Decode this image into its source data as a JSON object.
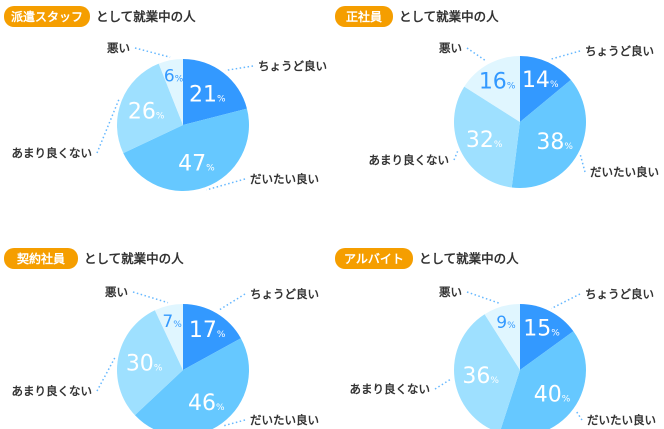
{
  "title_suffix": "として就業中の人",
  "chart_data": [
    {
      "type": "pie",
      "group": "派遣スタッフ",
      "title": "派遣スタッフ として就業中の人",
      "categories": [
        "ちょうど良い",
        "だいたい良い",
        "あまり良くない",
        "悪い"
      ],
      "values": [
        21,
        47,
        26,
        6
      ]
    },
    {
      "type": "pie",
      "group": "正社員",
      "title": "正社員 として就業中の人",
      "categories": [
        "ちょうど良い",
        "だいたい良い",
        "あまり良くない",
        "悪い"
      ],
      "values": [
        14,
        38,
        32,
        16
      ]
    },
    {
      "type": "pie",
      "group": "契約社員",
      "title": "契約社員 として就業中の人",
      "categories": [
        "ちょうど良い",
        "だいたい良い",
        "あまり良くない",
        "悪い"
      ],
      "values": [
        17,
        46,
        30,
        7
      ]
    },
    {
      "type": "pie",
      "group": "アルバイト",
      "title": "アルバイト として就業中の人",
      "categories": [
        "ちょうど良い",
        "だいたい良い",
        "あまり良くない",
        "悪い"
      ],
      "values": [
        15,
        40,
        36,
        9
      ]
    }
  ],
  "colors": {
    "slices": [
      "#3399ff",
      "#66c8ff",
      "#9ee0ff",
      "#e0f6ff"
    ],
    "badge": "#f59e00",
    "text": "#333333",
    "leader": "#66b8ff",
    "light_pct": "#3399ff"
  },
  "unit": "%"
}
